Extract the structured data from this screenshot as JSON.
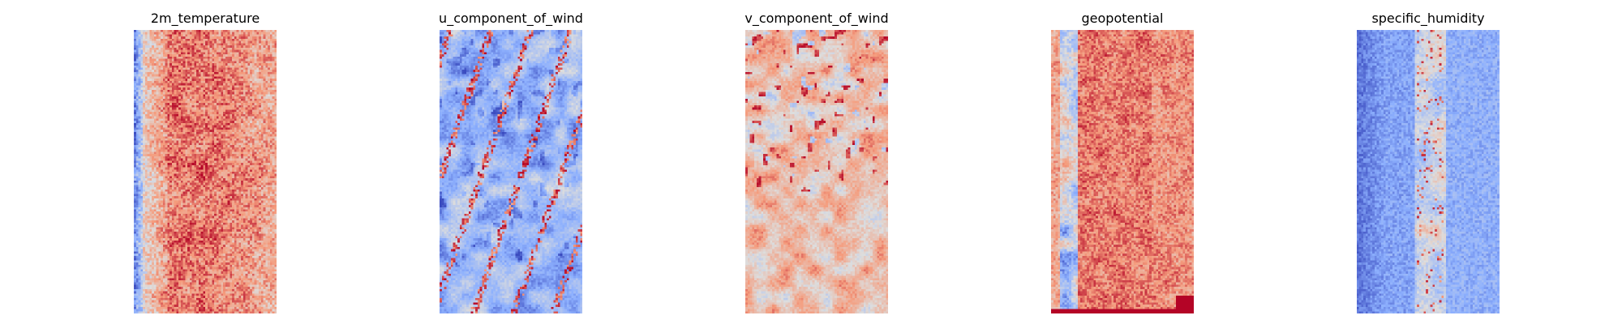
{
  "chart_data": [
    {
      "type": "heatmap",
      "title": "2m_temperature",
      "colormap": "coolwarm",
      "axes": "off",
      "grid": false,
      "legend": "none",
      "grid_shape": [
        128,
        64
      ],
      "pattern": "vertical band; cool/blue along left edge, warm red across center columns, lighter salmon toward right edge",
      "value_range": [
        0,
        1
      ]
    },
    {
      "type": "heatmap",
      "title": "u_component_of_wind",
      "colormap": "coolwarm",
      "axes": "off",
      "grid": false,
      "legend": "none",
      "grid_shape": [
        128,
        64
      ],
      "pattern": "mostly light blue with scattered diagonal streaks of red and darker blue",
      "value_range": [
        0,
        1
      ]
    },
    {
      "type": "heatmap",
      "title": "v_component_of_wind",
      "colormap": "coolwarm",
      "axes": "off",
      "grid": false,
      "legend": "none",
      "grid_shape": [
        128,
        64
      ],
      "pattern": "mostly pale salmon with scattered red patches and a few blue spots",
      "value_range": [
        0,
        1
      ]
    },
    {
      "type": "heatmap",
      "title": "geopotential",
      "colormap": "coolwarm",
      "axes": "off",
      "grid": false,
      "legend": "none",
      "grid_shape": [
        128,
        64
      ],
      "pattern": "warm salmon/red overall, blue-ish streak along left side, darker red speckles in center",
      "value_range": [
        0,
        1
      ]
    },
    {
      "type": "heatmap",
      "title": "specific_humidity",
      "colormap": "coolwarm",
      "axes": "off",
      "grid": false,
      "legend": "none",
      "grid_shape": [
        128,
        64
      ],
      "pattern": "blue overall, darker blue at left, lighter band with red speckles down the center",
      "value_range": [
        0,
        1
      ]
    }
  ]
}
